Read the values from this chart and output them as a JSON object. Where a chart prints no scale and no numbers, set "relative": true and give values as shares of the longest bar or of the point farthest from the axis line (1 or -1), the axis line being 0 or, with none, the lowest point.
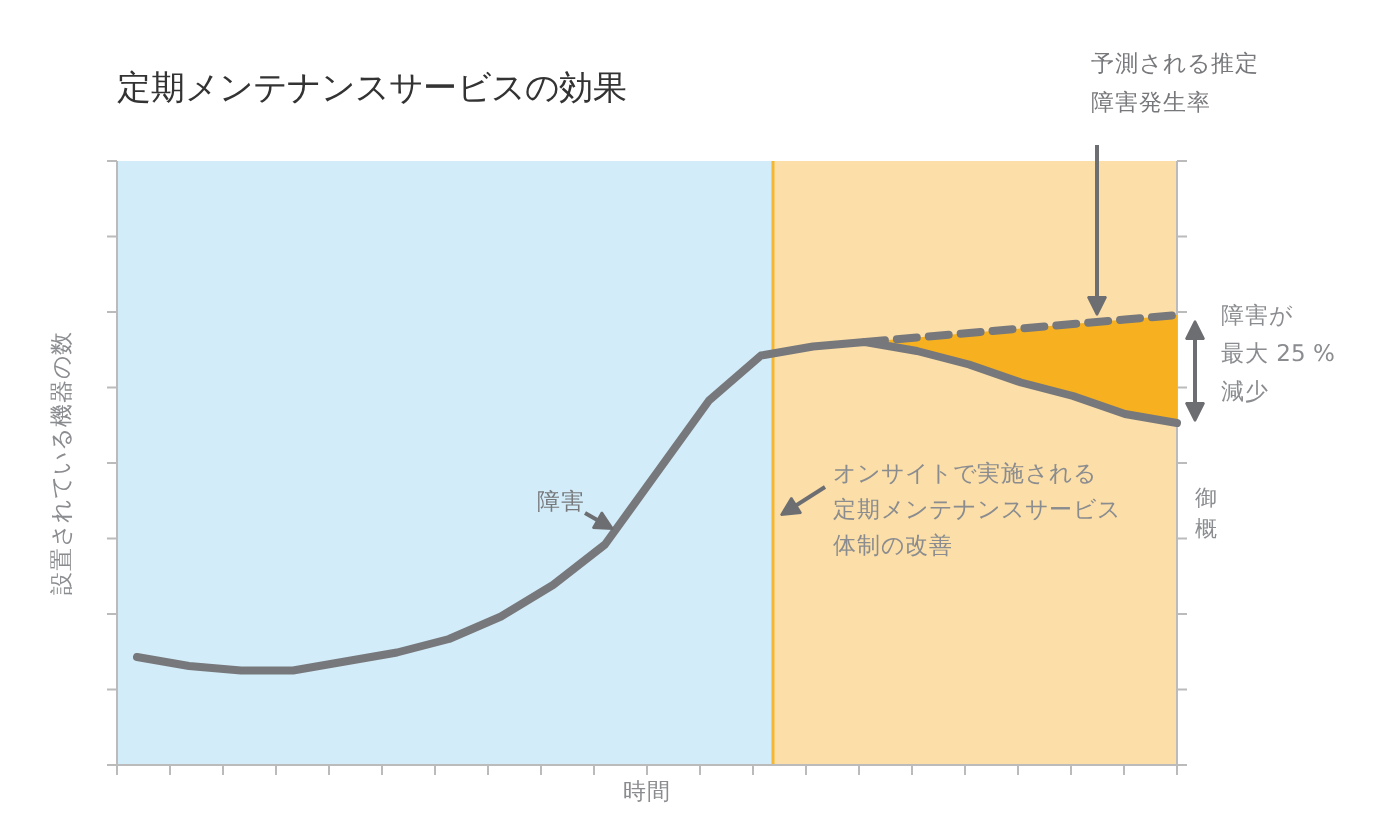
{
  "chart_data": {
    "type": "line",
    "relative": true,
    "title": "定期メンテナンスサービスの効果",
    "xlabel": "時間",
    "ylabel": "設置されている機器の数",
    "categories": [
      null,
      null,
      null,
      null,
      null,
      null,
      null,
      null,
      null,
      null,
      null,
      null,
      null,
      null,
      null,
      null,
      null,
      null,
      null,
      null,
      null
    ],
    "series": [
      {
        "name": "障害",
        "color": "#77787b",
        "line_style": "solid",
        "values": [
          0.24,
          0.22,
          0.21,
          0.21,
          0.23,
          0.25,
          0.28,
          0.33,
          0.4,
          0.49,
          0.65,
          0.81,
          0.91,
          0.93,
          0.94,
          0.92,
          0.89,
          0.85,
          0.82,
          0.78,
          0.76
        ]
      },
      {
        "name": "予測される推定障害発生率",
        "color": "#77787b",
        "line_style": "dashed",
        "values": [
          null,
          null,
          null,
          null,
          null,
          null,
          null,
          null,
          null,
          null,
          null,
          null,
          null,
          null,
          0.94,
          0.95,
          0.96,
          0.97,
          0.98,
          0.99,
          1.0
        ],
        "lower": [
          null,
          null,
          null,
          null,
          null,
          null,
          null,
          null,
          null,
          null,
          null,
          null,
          null,
          null,
          0.94,
          0.92,
          0.89,
          0.85,
          0.82,
          0.78,
          0.76
        ],
        "upper": [
          null,
          null,
          null,
          null,
          null,
          null,
          null,
          null,
          null,
          null,
          null,
          null,
          null,
          null,
          0.94,
          0.95,
          0.96,
          0.97,
          0.98,
          0.99,
          1.0
        ]
      }
    ],
    "annotations": [
      "オンサイトで実施される",
      "定期メンテナンスサービス",
      "体制の改善",
      "障害が",
      "最大 25 %",
      "減少",
      "御概"
    ],
    "grid": false,
    "marker": "none"
  }
}
